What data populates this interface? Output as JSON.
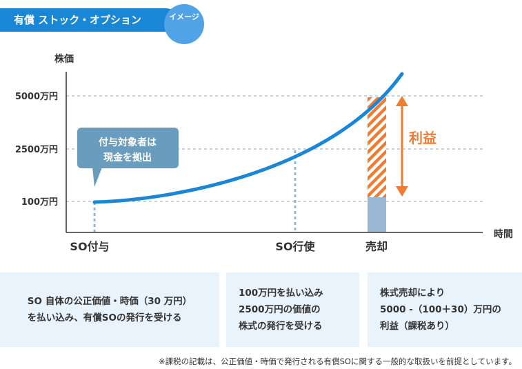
{
  "header": {
    "title": "有償 ストック・オプション",
    "badge": "イメージ"
  },
  "chart_data": {
    "type": "line",
    "ylabel": "株価",
    "xlabel": "時間",
    "y_ticks": [
      {
        "label": "5000万円",
        "value": 5000
      },
      {
        "label": "2500万円",
        "value": 2500
      },
      {
        "label": "100万円",
        "value": 100
      }
    ],
    "events": [
      {
        "label": "SO付与",
        "value": 100
      },
      {
        "label": "SO行使",
        "value": 2500
      },
      {
        "label": "売却",
        "value": 5000
      }
    ],
    "callout": {
      "lines": [
        "付与対象者は",
        "現金を拠出"
      ]
    },
    "profit_label": "利益",
    "grid": true
  },
  "info_boxes": [
    {
      "lines": [
        "SO 自体の公正価値・時価（30 万円）",
        "を払い込み、有償SOの発行を受ける"
      ]
    },
    {
      "lines": [
        "100万円を払い込み",
        "2500万円の価値の",
        "株式の発行を受ける"
      ]
    },
    {
      "lines": [
        "株式売却により",
        "5000 -（100＋30）万円の",
        "利益（課税あり）"
      ]
    }
  ],
  "footnote": "※課税の記載は、公正価値・時価で発行される有償SOに関する一般的な取扱いを前提としています。",
  "colors": {
    "curve": "#1a86d6",
    "profit": "#ee7d31",
    "callout": "#6a9dbd",
    "bar": "#9ab7d6",
    "box": "#e9f3fb"
  }
}
